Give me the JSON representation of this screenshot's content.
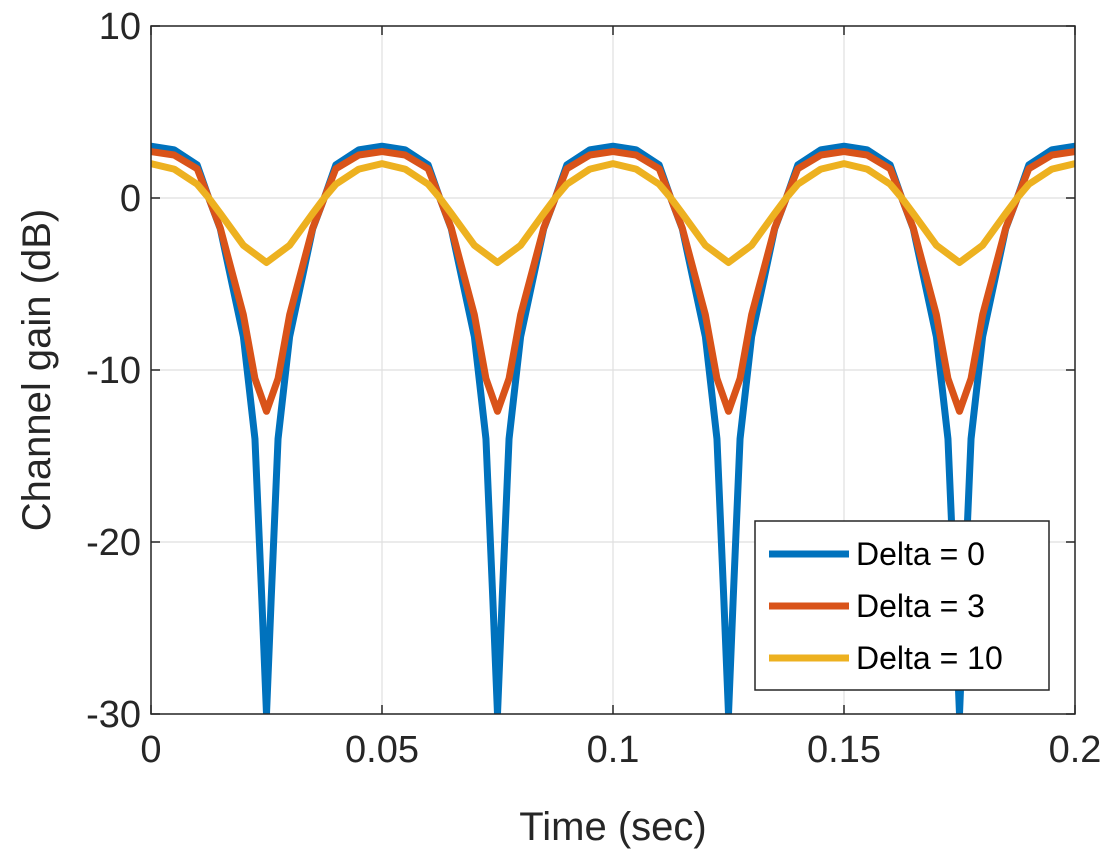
{
  "chart_data": {
    "type": "line",
    "title": "",
    "xlabel": "Time (sec)",
    "ylabel": "Channel gain (dB)",
    "xlim": [
      0,
      0.2
    ],
    "ylim": [
      -30,
      10
    ],
    "xticks": [
      0,
      0.05,
      0.1,
      0.15,
      0.2
    ],
    "xtick_labels": [
      "0",
      "0.05",
      "0.1",
      "0.15",
      "0.2"
    ],
    "yticks": [
      -30,
      -20,
      -10,
      0,
      10
    ],
    "ytick_labels": [
      "-30",
      "-20",
      "-10",
      "0",
      "10"
    ],
    "grid": true,
    "legend_position": "bottom-right",
    "series": [
      {
        "name": "Delta = 0",
        "color": "#0072BD",
        "x": [
          0,
          0.005,
          0.01,
          0.0125,
          0.015,
          0.02,
          0.0225,
          0.024,
          0.025,
          0.026,
          0.0275,
          0.03,
          0.035,
          0.0375,
          0.04,
          0.045,
          0.05
        ],
        "y": [
          3.01,
          2.8,
          1.92,
          0.0,
          -1.79,
          -8.07,
          -14.0,
          -23.4,
          -30,
          -23.4,
          -14.0,
          -8.07,
          -1.79,
          0.0,
          1.92,
          2.8,
          3.01
        ]
      },
      {
        "name": "Delta = 3",
        "color": "#D95319",
        "x": [
          0,
          0.005,
          0.01,
          0.0125,
          0.015,
          0.02,
          0.0225,
          0.025,
          0.0275,
          0.03,
          0.035,
          0.0375,
          0.04,
          0.045,
          0.05
        ],
        "y": [
          2.7,
          2.5,
          1.7,
          0.0,
          -1.75,
          -6.8,
          -10.5,
          -12.4,
          -10.5,
          -6.8,
          -1.75,
          0.0,
          1.7,
          2.5,
          2.7
        ]
      },
      {
        "name": "Delta = 10",
        "color": "#EDB120",
        "x": [
          0,
          0.005,
          0.01,
          0.0125,
          0.015,
          0.02,
          0.025,
          0.03,
          0.035,
          0.0375,
          0.04,
          0.045,
          0.05
        ],
        "y": [
          2.0,
          1.68,
          0.8,
          0.0,
          -0.9,
          -2.75,
          -3.75,
          -2.75,
          -0.9,
          0.0,
          0.8,
          1.68,
          2.0
        ]
      }
    ]
  }
}
